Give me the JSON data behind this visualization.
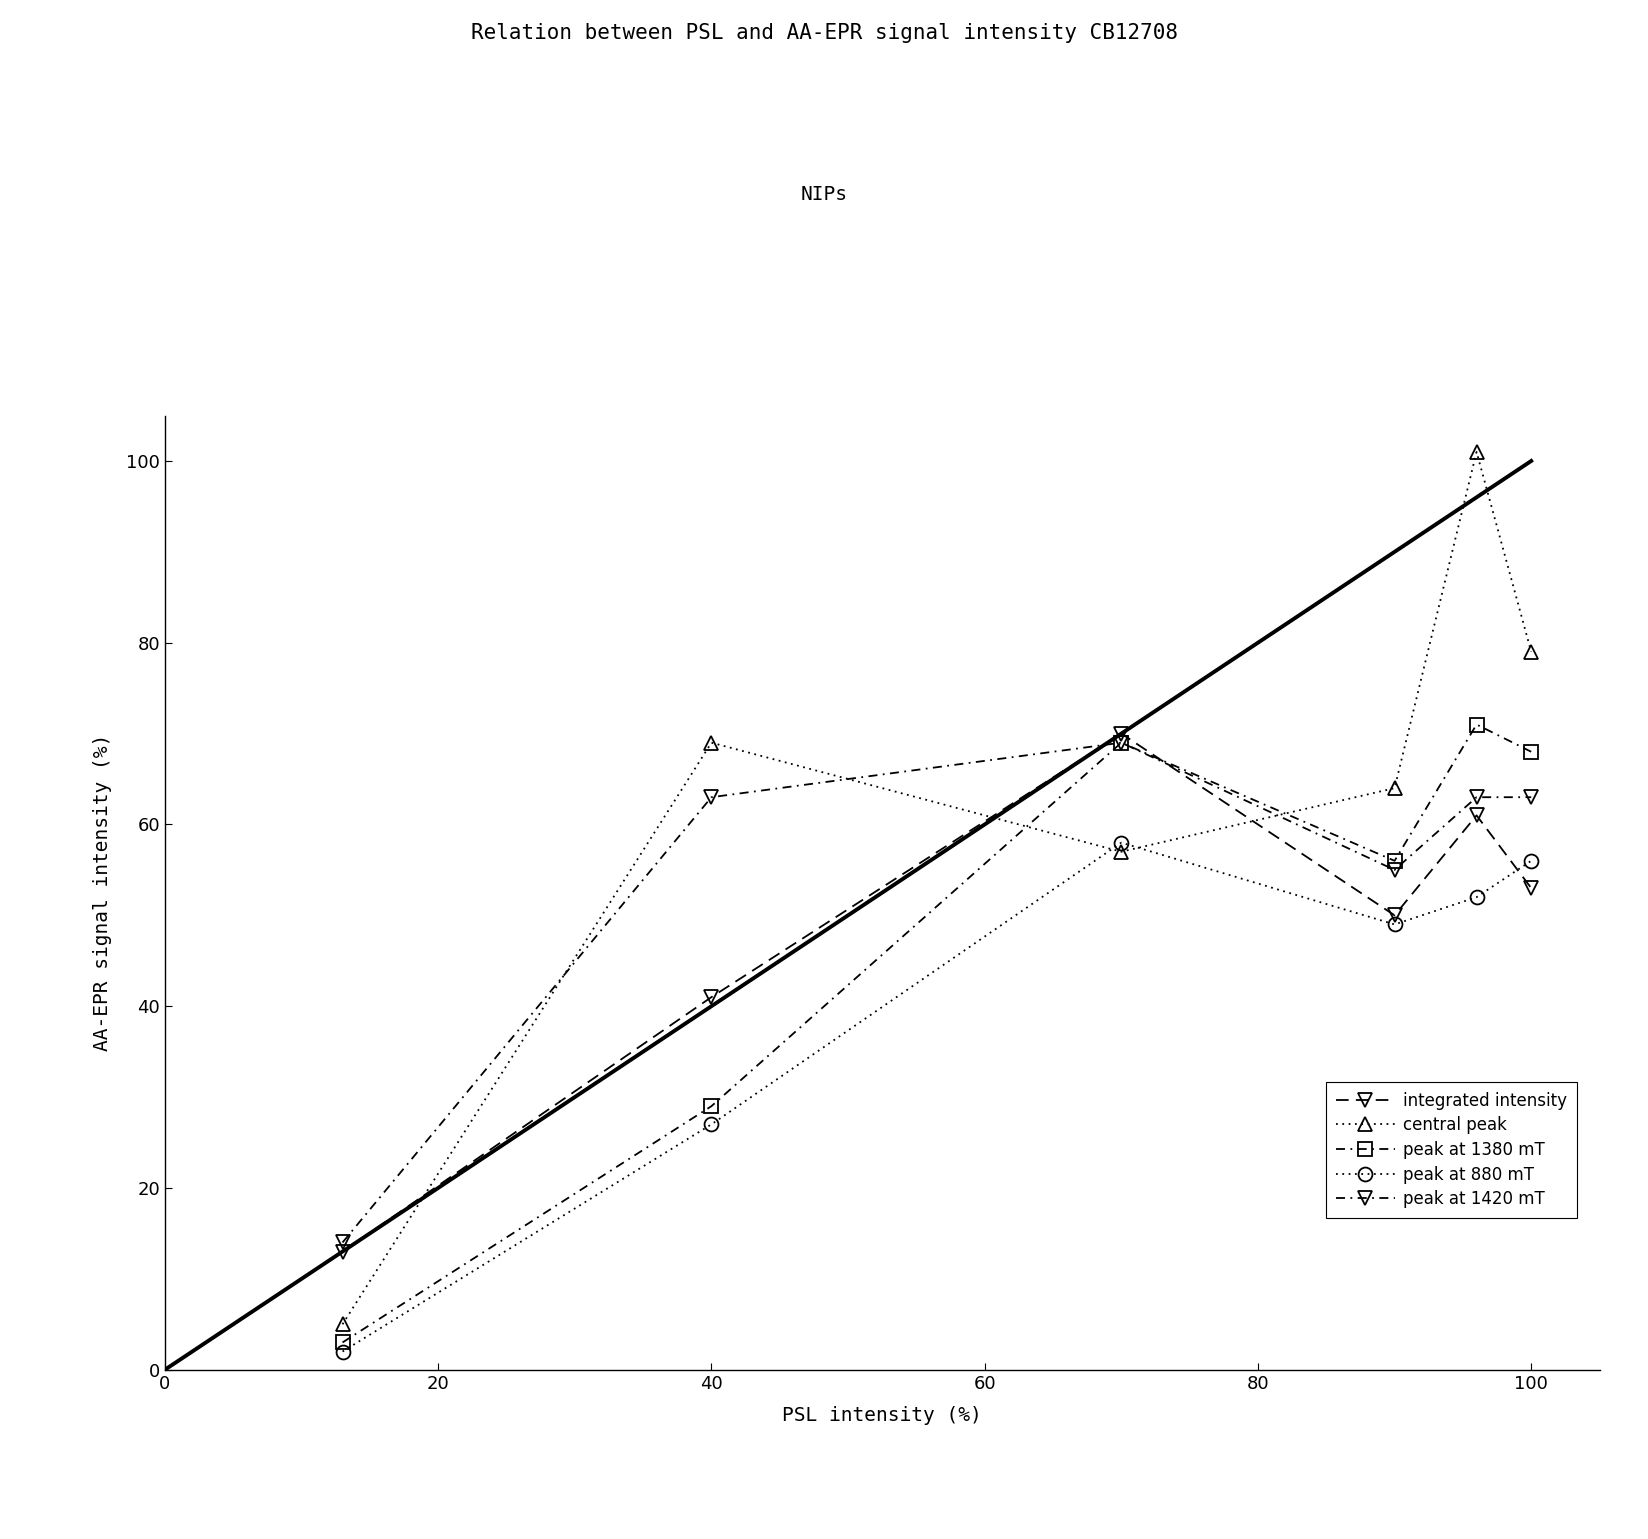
{
  "title": "Relation between PSL and AA-EPR signal intensity CB12708",
  "subtitle": "NIPs",
  "xlabel": "PSL intensity (%)",
  "ylabel": "AA-EPR signal intensity (%)",
  "xlim": [
    0,
    105
  ],
  "ylim": [
    0,
    105
  ],
  "xticks": [
    0,
    20,
    40,
    60,
    80,
    100
  ],
  "yticks": [
    0,
    20,
    40,
    60,
    80,
    100
  ],
  "series": [
    {
      "label": "integrated intensity",
      "x": [
        13,
        40,
        70,
        90,
        96,
        100
      ],
      "y": [
        13,
        41,
        70,
        50,
        61,
        53
      ],
      "marker": "v",
      "linestyle": "dashed",
      "color": "#000000",
      "markersize": 10,
      "fillstyle": "none"
    },
    {
      "label": "central peak",
      "x": [
        13,
        40,
        70,
        90,
        96,
        100
      ],
      "y": [
        5,
        69,
        57,
        64,
        101,
        79
      ],
      "marker": "^",
      "linestyle": "dotted",
      "color": "#000000",
      "markersize": 10,
      "fillstyle": "none"
    },
    {
      "label": "peak at 1380 mT",
      "x": [
        13,
        40,
        70,
        90,
        96,
        100
      ],
      "y": [
        3,
        29,
        69,
        56,
        71,
        68
      ],
      "marker": "s",
      "linestyle": "dashdot",
      "color": "#000000",
      "markersize": 10,
      "fillstyle": "none"
    },
    {
      "label": "peak at 880 mT",
      "x": [
        13,
        40,
        70,
        90,
        96,
        100
      ],
      "y": [
        2,
        27,
        58,
        49,
        52,
        56
      ],
      "marker": "o",
      "linestyle": "dotted",
      "color": "#000000",
      "markersize": 10,
      "fillstyle": "none"
    },
    {
      "label": "peak at 1420 mT",
      "x": [
        13,
        40,
        70,
        90,
        96,
        100
      ],
      "y": [
        14,
        63,
        69,
        55,
        63,
        63
      ],
      "marker": "v",
      "linestyle": "dashdot",
      "color": "#000000",
      "markersize": 10,
      "fillstyle": "none"
    }
  ],
  "background_color": "#ffffff",
  "title_fontsize": 15,
  "subtitle_fontsize": 14,
  "axis_label_fontsize": 14,
  "tick_fontsize": 13,
  "legend_fontsize": 12
}
